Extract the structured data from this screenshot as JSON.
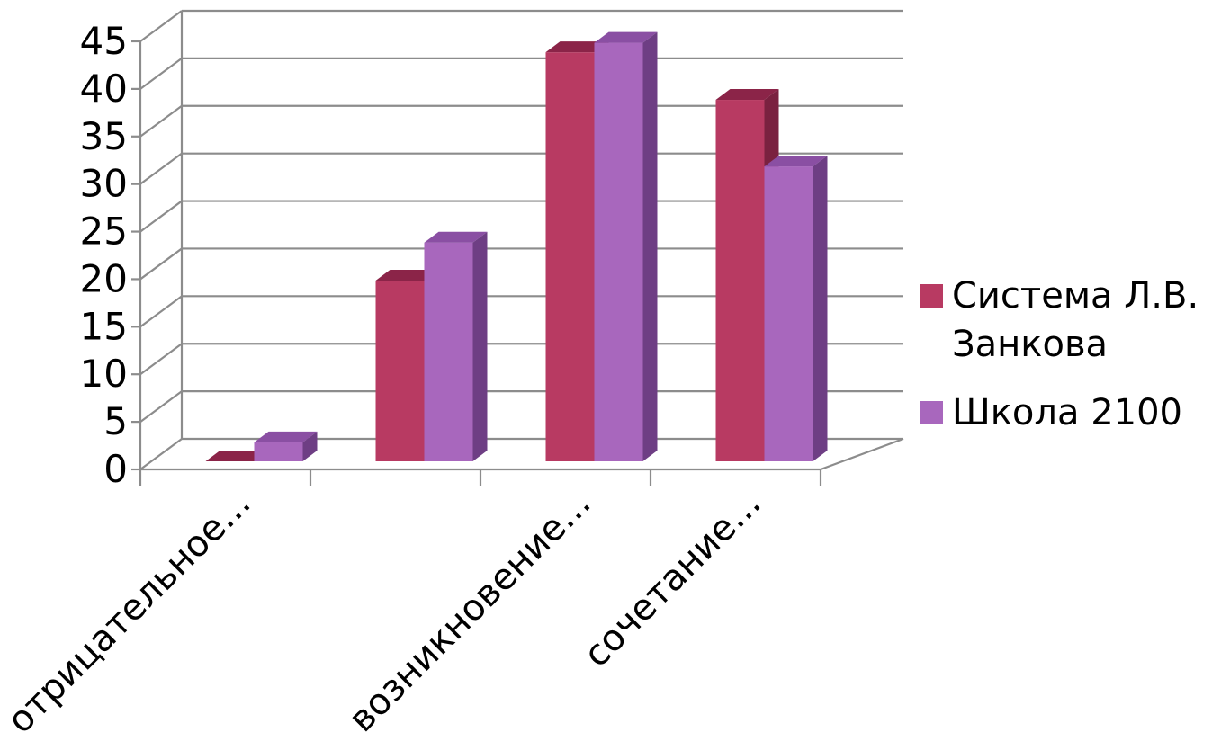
{
  "chart_data": {
    "type": "bar",
    "title": "",
    "xlabel": "",
    "ylabel": "",
    "ylim": [
      0,
      45
    ],
    "yticks": [
      0,
      5,
      10,
      15,
      20,
      25,
      30,
      35,
      40,
      45
    ],
    "grid": true,
    "legend_position": "right",
    "categories": [
      "",
      "",
      "",
      ""
    ],
    "x_tick_labels": [
      {
        "category_index": 0,
        "text": "отрицательное..."
      },
      {
        "category_index": 1,
        "text": ""
      },
      {
        "category_index": 2,
        "text": "возникновение..."
      },
      {
        "category_index": 3,
        "text": "сочетание..."
      }
    ],
    "series": [
      {
        "name": "Система Л.В. Занкова",
        "legend_lines": [
          "Система Л.В.",
          "Занкова"
        ],
        "color": "#b83a62",
        "top_color": "#8b2448",
        "side_color": "#7a2140",
        "values": [
          0,
          19,
          43,
          38
        ]
      },
      {
        "name": "Школа 2100",
        "legend_lines": [
          "Школа 2100"
        ],
        "color": "#a867bd",
        "top_color": "#8a4fa3",
        "side_color": "#6e3e84",
        "values": [
          2,
          23,
          44,
          31
        ]
      }
    ]
  }
}
